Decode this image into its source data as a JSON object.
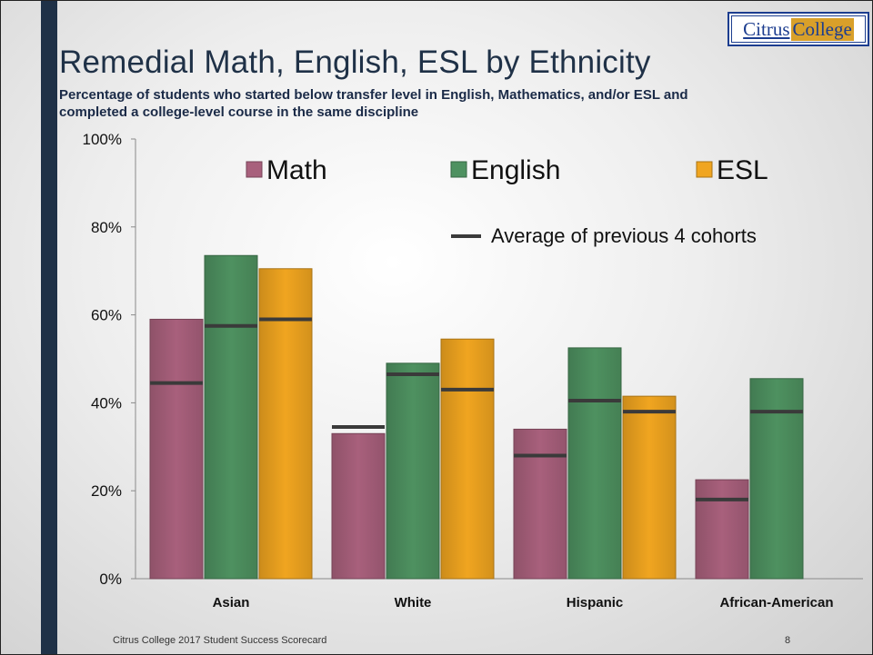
{
  "logo": {
    "part1": "Citrus",
    "part2": "College"
  },
  "title": "Remedial Math, English, ESL by Ethnicity",
  "subtitle": "Percentage of students who started below transfer level in English, Mathematics, and/or ESL and completed a college-level course in the same discipline",
  "footer": {
    "text": "Citrus College 2017 Student Success Scorecard",
    "page": "8"
  },
  "colors": {
    "Math": "#a8607c",
    "English": "#4e9160",
    "ESL": "#f0a520",
    "average_line": "#3a3a3a"
  },
  "chart_data": {
    "type": "bar",
    "categories": [
      "Asian",
      "White",
      "Hispanic",
      "African-American"
    ],
    "series": [
      {
        "name": "Math",
        "values": [
          59,
          33,
          34,
          22.5
        ]
      },
      {
        "name": "English",
        "values": [
          73.5,
          49,
          52.5,
          45.5
        ]
      },
      {
        "name": "ESL",
        "values": [
          70.5,
          54.5,
          41.5,
          null
        ]
      }
    ],
    "averages": {
      "name": "Average of previous 4 cohorts",
      "series": [
        {
          "name": "Math",
          "values": [
            44.5,
            34.5,
            28,
            18
          ]
        },
        {
          "name": "English",
          "values": [
            57.5,
            46.5,
            40.5,
            38
          ]
        },
        {
          "name": "ESL",
          "values": [
            59,
            43,
            38,
            null
          ]
        }
      ]
    },
    "ylim": [
      0,
      100
    ],
    "yticks": [
      0,
      20,
      40,
      60,
      80,
      100
    ],
    "ytick_labels": [
      "0%",
      "20%",
      "40%",
      "60%",
      "80%",
      "100%"
    ],
    "legend_placement": "top"
  }
}
